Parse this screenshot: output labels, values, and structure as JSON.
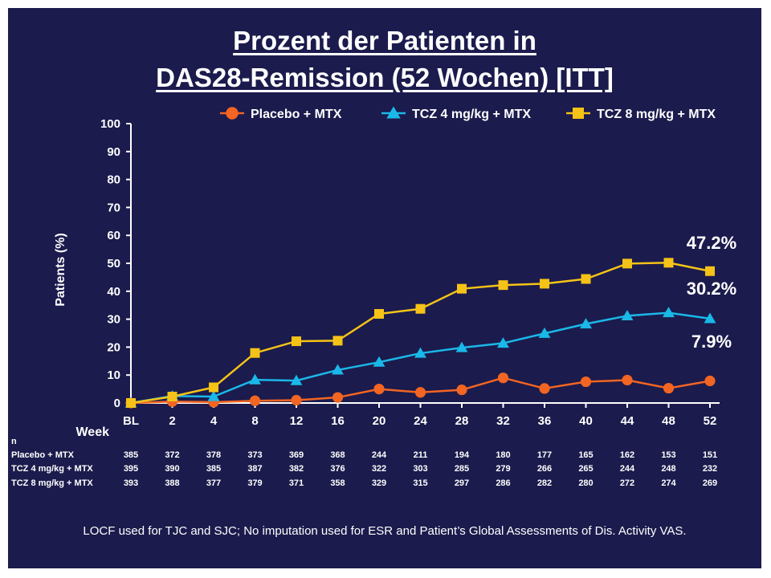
{
  "chart_data": {
    "type": "line",
    "title": [
      "Prozent der Patienten in",
      "DAS28-Remission (52 Wochen) [ITT]"
    ],
    "ylabel": "Patients (%)",
    "xlabel": "Week",
    "categories": [
      "BL",
      "2",
      "4",
      "8",
      "12",
      "16",
      "20",
      "24",
      "28",
      "32",
      "36",
      "40",
      "44",
      "48",
      "52"
    ],
    "yticks": [
      0,
      10,
      20,
      30,
      40,
      50,
      60,
      70,
      80,
      90,
      100
    ],
    "ylim": [
      0,
      100
    ],
    "grid": false,
    "legend_position": "top-right",
    "series": [
      {
        "name": "Placebo + MTX",
        "marker": "circle",
        "color": "#f26522",
        "values": [
          0,
          0.5,
          0.3,
          0.8,
          1.0,
          2.0,
          5.0,
          3.8,
          4.7,
          9.0,
          5.2,
          7.6,
          8.2,
          5.3,
          7.9
        ],
        "end_label": "7.9%"
      },
      {
        "name": "TCZ 4 mg/kg + MTX",
        "marker": "triangle",
        "color": "#1ab8e8",
        "values": [
          0,
          2.5,
          2.3,
          8.3,
          8.0,
          11.8,
          14.6,
          17.8,
          19.8,
          21.4,
          24.9,
          28.3,
          31.2,
          32.3,
          30.2
        ],
        "end_label": "30.2%"
      },
      {
        "name": "TCZ 8 mg/kg + MTX",
        "marker": "square",
        "color": "#f5c317",
        "values": [
          0,
          2.3,
          5.6,
          17.9,
          22.1,
          22.3,
          31.9,
          33.7,
          40.9,
          42.2,
          42.7,
          44.4,
          49.9,
          50.2,
          47.2
        ],
        "end_label": "47.2%"
      }
    ],
    "n_table": {
      "header": "n",
      "rows": [
        {
          "label": "Placebo + MTX",
          "values": [
            "385",
            "372",
            "378",
            "373",
            "369",
            "368",
            "244",
            "211",
            "194",
            "180",
            "177",
            "165",
            "162",
            "153",
            "151"
          ]
        },
        {
          "label": "TCZ 4 mg/kg + MTX",
          "values": [
            "395",
            "390",
            "385",
            "387",
            "382",
            "376",
            "322",
            "303",
            "285",
            "279",
            "266",
            "265",
            "244",
            "248",
            "232"
          ]
        },
        {
          "label": "TCZ 8 mg/kg + MTX",
          "values": [
            "393",
            "388",
            "377",
            "379",
            "371",
            "358",
            "329",
            "315",
            "297",
            "286",
            "282",
            "280",
            "272",
            "274",
            "269"
          ]
        }
      ]
    },
    "footnote": "LOCF used for TJC and SJC; No imputation used for ESR and Patient’s Global Assessments of Dis. Activity VAS."
  }
}
